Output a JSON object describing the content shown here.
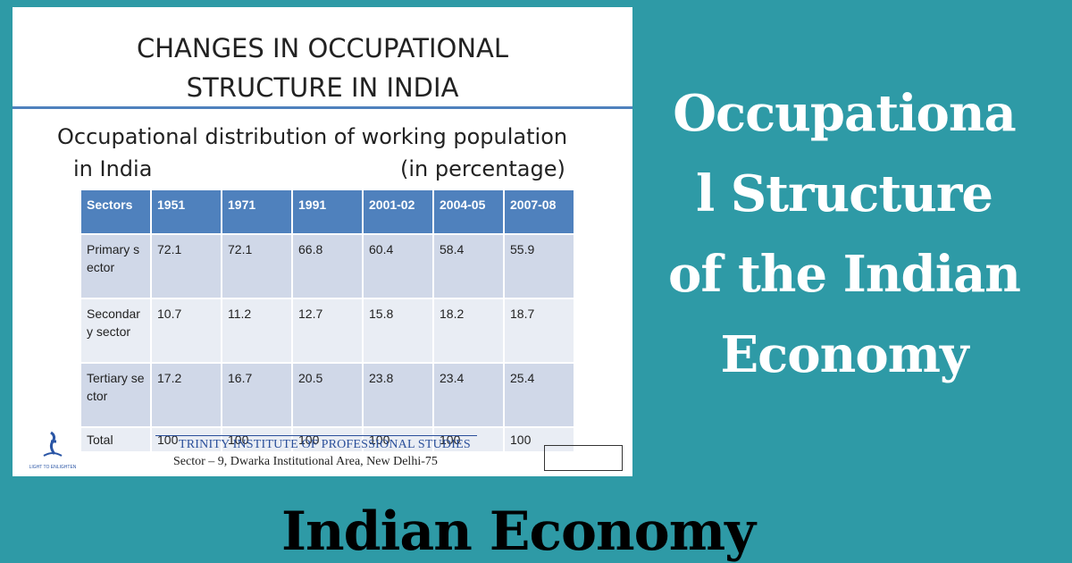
{
  "slide": {
    "title_lines": [
      "CHANGES IN OCCUPATIONAL",
      "STRUCTURE IN INDIA"
    ],
    "subtitle_line1": "Occupational distribution of working population",
    "subtitle_line2": "in India",
    "unit_note": "(in percentage)",
    "table": {
      "header": [
        "Sectors",
        "1951",
        "1971",
        "1991",
        "2001-02",
        "2004-05",
        "2007-08"
      ],
      "rows": [
        [
          "Primary sector",
          "72.1",
          "72.1",
          "66.8",
          "60.4",
          "58.4",
          "55.9"
        ],
        [
          "Secondary sector",
          "10.7",
          "11.2",
          "12.7",
          "15.8",
          "18.2",
          "18.7"
        ],
        [
          "Tertiary sector",
          "17.2",
          "16.7",
          "20.5",
          "23.8",
          "23.4",
          "25.4"
        ],
        [
          "Total",
          "100",
          "100",
          "100",
          "100",
          "100",
          "100"
        ]
      ]
    },
    "logo_text": "LIGHT TO ENLIGHTEN",
    "institute": "TRINITY INSTITUTE OF PROFESSIONAL STUDIES",
    "address": "Sector – 9, Dwarka Institutional Area, New Delhi-75"
  },
  "side_title_lines": [
    "Occupationa",
    "l Structure",
    "of the Indian",
    "Economy"
  ],
  "bottom_title": "Indian Economy"
}
